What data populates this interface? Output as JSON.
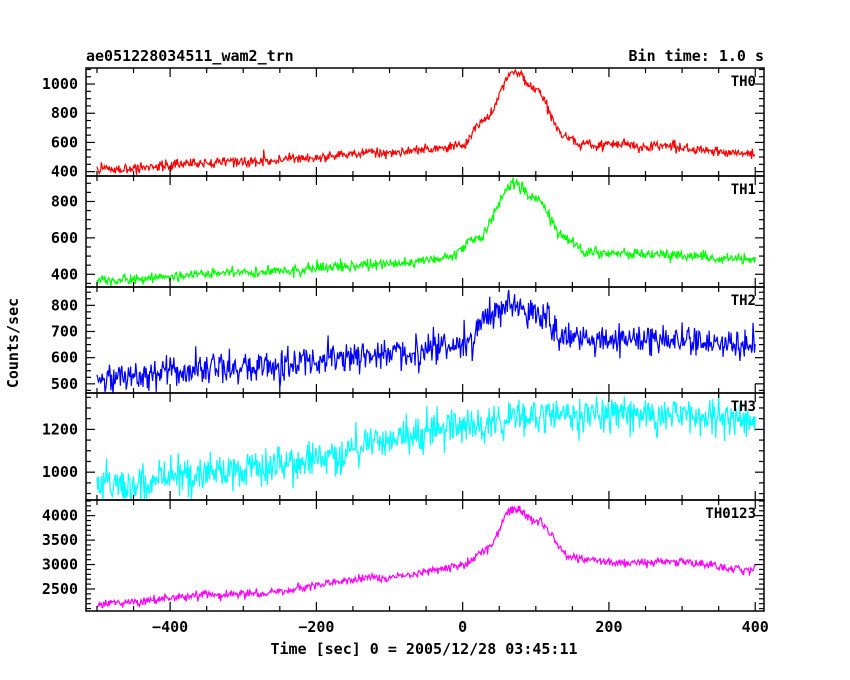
{
  "chart_data": {
    "type": "line",
    "title": "ae051228034511_wam2_trn",
    "bin_time_label": "Bin time: 1.0 s",
    "xlabel": "Time [sec] 0 = 2005/12/28 03:45:11",
    "ylabel": "Counts/sec",
    "xlim": [
      -515,
      412
    ],
    "x_ticks": [
      -400,
      -200,
      0,
      200,
      400
    ],
    "x_tick_labels": [
      "−400",
      "−200",
      "0",
      "200",
      "400"
    ],
    "x_minor_tick_step": 50,
    "panels": [
      {
        "name": "TH0",
        "color": "#ff0000",
        "ylim": [
          370,
          1110
        ],
        "y_ticks": [
          400,
          600,
          800,
          1000
        ],
        "y_minor_tick_step": 50,
        "profile": [
          [
            -500,
            415
          ],
          [
            -300,
            470
          ],
          [
            -100,
            530
          ],
          [
            0,
            580
          ],
          [
            30,
            760
          ],
          [
            70,
            1080
          ],
          [
            100,
            960
          ],
          [
            140,
            640
          ],
          [
            160,
            590
          ],
          [
            250,
            575
          ],
          [
            400,
            525
          ]
        ],
        "noise": 18
      },
      {
        "name": "TH1",
        "color": "#00ff00",
        "ylim": [
          330,
          940
        ],
        "y_ticks": [
          400,
          600,
          800
        ],
        "y_minor_tick_step": 50,
        "profile": [
          [
            -500,
            365
          ],
          [
            -300,
            410
          ],
          [
            -100,
            455
          ],
          [
            -20,
            490
          ],
          [
            20,
            600
          ],
          [
            70,
            900
          ],
          [
            100,
            820
          ],
          [
            140,
            600
          ],
          [
            170,
            520
          ],
          [
            250,
            510
          ],
          [
            400,
            480
          ]
        ],
        "noise": 15
      },
      {
        "name": "TH2",
        "color": "#0000ff",
        "ylim": [
          465,
          870
        ],
        "y_ticks": [
          500,
          600,
          700,
          800
        ],
        "y_minor_tick_step": 25,
        "profile": [
          [
            -500,
            525
          ],
          [
            -300,
            560
          ],
          [
            -100,
            615
          ],
          [
            0,
            650
          ],
          [
            40,
            760
          ],
          [
            70,
            810
          ],
          [
            100,
            770
          ],
          [
            140,
            680
          ],
          [
            250,
            670
          ],
          [
            400,
            650
          ]
        ],
        "noise": 30
      },
      {
        "name": "TH3",
        "color": "#00ffff",
        "ylim": [
          870,
          1370
        ],
        "y_ticks": [
          1000,
          1200
        ],
        "y_minor_tick_step": 50,
        "profile": [
          [
            -500,
            940
          ],
          [
            -300,
            1010
          ],
          [
            -200,
            1060
          ],
          [
            -100,
            1160
          ],
          [
            0,
            1220
          ],
          [
            100,
            1265
          ],
          [
            200,
            1270
          ],
          [
            300,
            1270
          ],
          [
            400,
            1250
          ]
        ],
        "noise": 45
      },
      {
        "name": "TH0123",
        "color": "#ff00ff",
        "ylim": [
          2050,
          4320
        ],
        "y_ticks": [
          2500,
          3000,
          3500,
          4000
        ],
        "y_minor_tick_step": 100,
        "profile": [
          [
            -500,
            2210
          ],
          [
            -300,
            2400
          ],
          [
            -100,
            2740
          ],
          [
            0,
            2970
          ],
          [
            30,
            3300
          ],
          [
            70,
            4150
          ],
          [
            100,
            3900
          ],
          [
            150,
            3150
          ],
          [
            200,
            3050
          ],
          [
            300,
            3040
          ],
          [
            400,
            2880
          ]
        ],
        "noise": 45
      }
    ]
  }
}
